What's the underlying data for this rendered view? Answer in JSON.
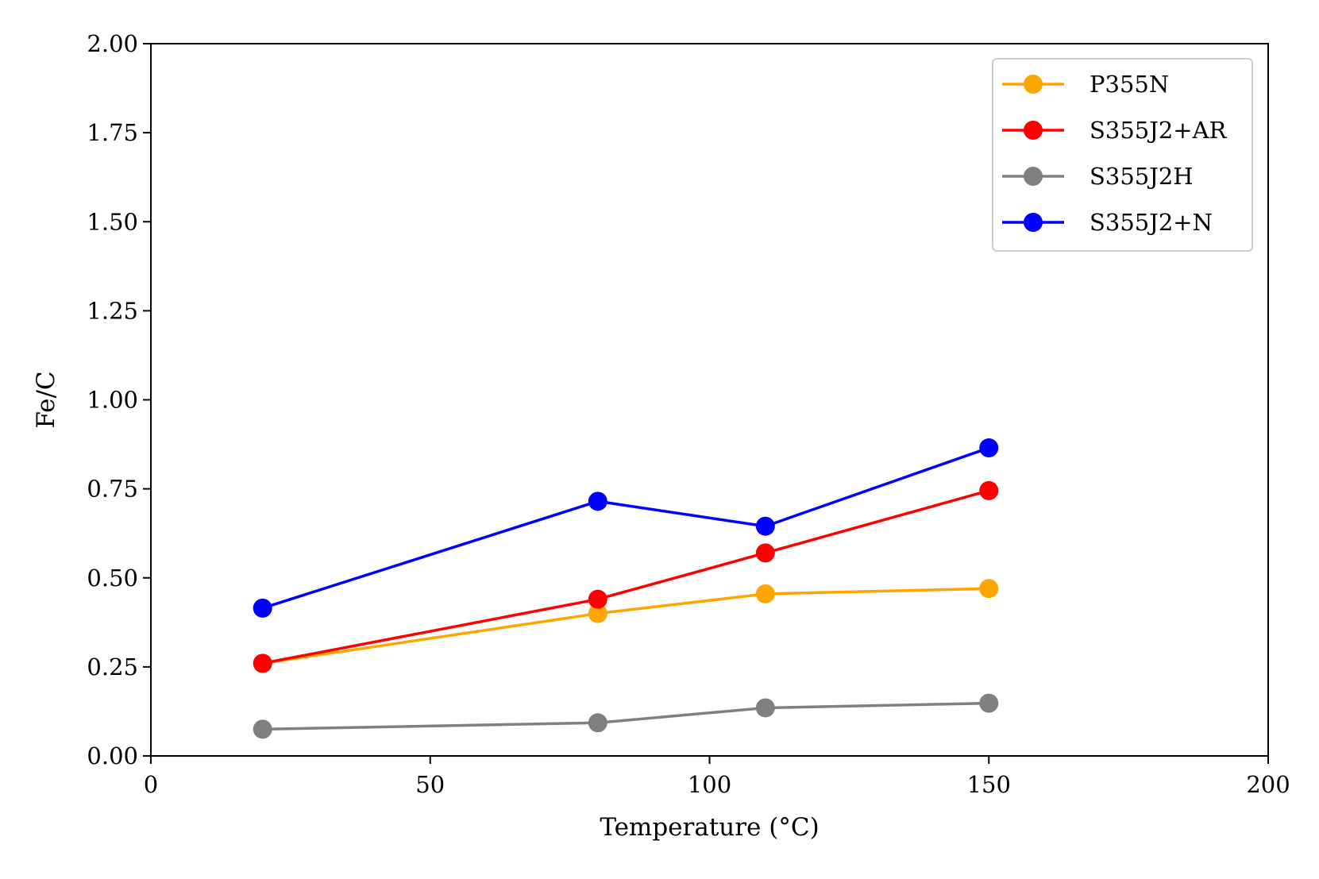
{
  "chart_data": {
    "type": "line",
    "title": "",
    "xlabel": "Temperature (°C)",
    "ylabel": "Fe/C",
    "xlim": [
      0,
      200
    ],
    "ylim": [
      0,
      2.0
    ],
    "xticks": [
      0,
      50,
      100,
      150,
      200
    ],
    "xtick_labels": [
      "0",
      "50",
      "100",
      "150",
      "200"
    ],
    "yticks": [
      0,
      0.25,
      0.5,
      0.75,
      1.0,
      1.25,
      1.5,
      1.75,
      2.0
    ],
    "ytick_labels": [
      "0.00",
      "0.25",
      "0.50",
      "0.75",
      "1.00",
      "1.25",
      "1.50",
      "1.75",
      "2.00"
    ],
    "grid": false,
    "legend_position": "top-right",
    "x": [
      20,
      80,
      110,
      150
    ],
    "series": [
      {
        "name": "P355N",
        "color": "#ffa500",
        "values": [
          0.26,
          0.4,
          0.455,
          0.47
        ]
      },
      {
        "name": "S355J2+AR",
        "color": "#ff0000",
        "values": [
          0.26,
          0.44,
          0.57,
          0.745
        ]
      },
      {
        "name": "S355J2H",
        "color": "#808080",
        "values": [
          0.075,
          0.093,
          0.135,
          0.148
        ]
      },
      {
        "name": "S355J2+N",
        "color": "#0000ff",
        "values": [
          0.415,
          0.715,
          0.645,
          0.865
        ]
      }
    ]
  }
}
